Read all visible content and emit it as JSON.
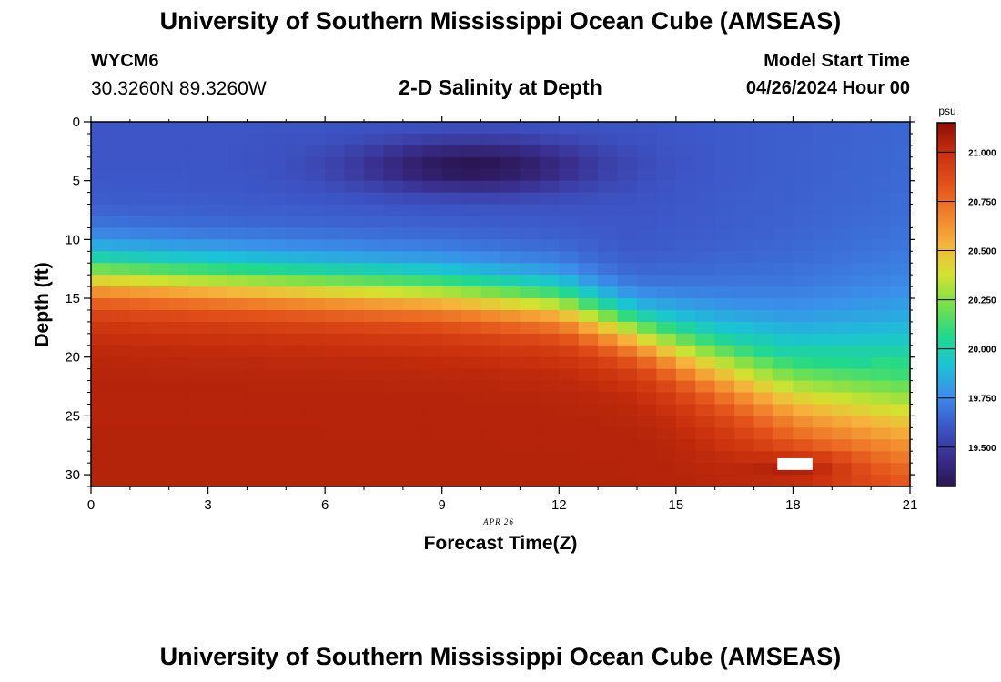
{
  "header": {
    "title": "University of Southern Mississippi Ocean Cube (AMSEAS)",
    "station_id": "WYCM6",
    "coordinates": "30.3260N  89.3260W",
    "subtitle": "2-D Salinity at Depth",
    "model_start_label": "Model Start Time",
    "model_start_value": "04/26/2024 Hour 00"
  },
  "footer": {
    "title": "University of Southern Mississippi Ocean Cube (AMSEAS)"
  },
  "chart_data": {
    "type": "heatmap",
    "title": "2-D Salinity at Depth",
    "xlabel": "Forecast Time(Z)",
    "ylabel": "Depth (ft)",
    "x_ticks": [
      0,
      3,
      6,
      9,
      12,
      15,
      18,
      21
    ],
    "y_ticks": [
      0,
      5,
      10,
      15,
      20,
      25,
      30
    ],
    "xlim": [
      0,
      21
    ],
    "ylim": [
      0,
      31
    ],
    "date_annotation": "APR 26",
    "colorbar": {
      "units": "psu",
      "range": [
        19.3,
        21.15
      ],
      "ticks": [
        "19.500",
        "19.750",
        "20.000",
        "20.250",
        "20.500",
        "20.750",
        "21.000"
      ],
      "colors": [
        "#2a1552",
        "#3a2f8f",
        "#3d57c9",
        "#3b8eea",
        "#1bc3d6",
        "#22d98a",
        "#7be04a",
        "#d3e230",
        "#f6b23c",
        "#f07f2a",
        "#e2501a",
        "#c9300d",
        "#8e0d06"
      ]
    },
    "description_of_field": {
      "surface_layer": "low salinity ~19.3-19.6 psu from 0 to ~7 ft, minimum near 3-4 ft at hour 9-10",
      "halocline_depth_ft": [
        [
          0,
          13
        ],
        [
          6,
          14
        ],
        [
          9,
          14.5
        ],
        [
          12,
          15.5
        ],
        [
          15,
          19
        ],
        [
          18,
          22.5
        ],
        [
          21,
          24
        ]
      ],
      "bottom_layer": "high salinity ~20.9-21.1 psu below halocline, local maximum near 29 ft at hour 18"
    }
  }
}
